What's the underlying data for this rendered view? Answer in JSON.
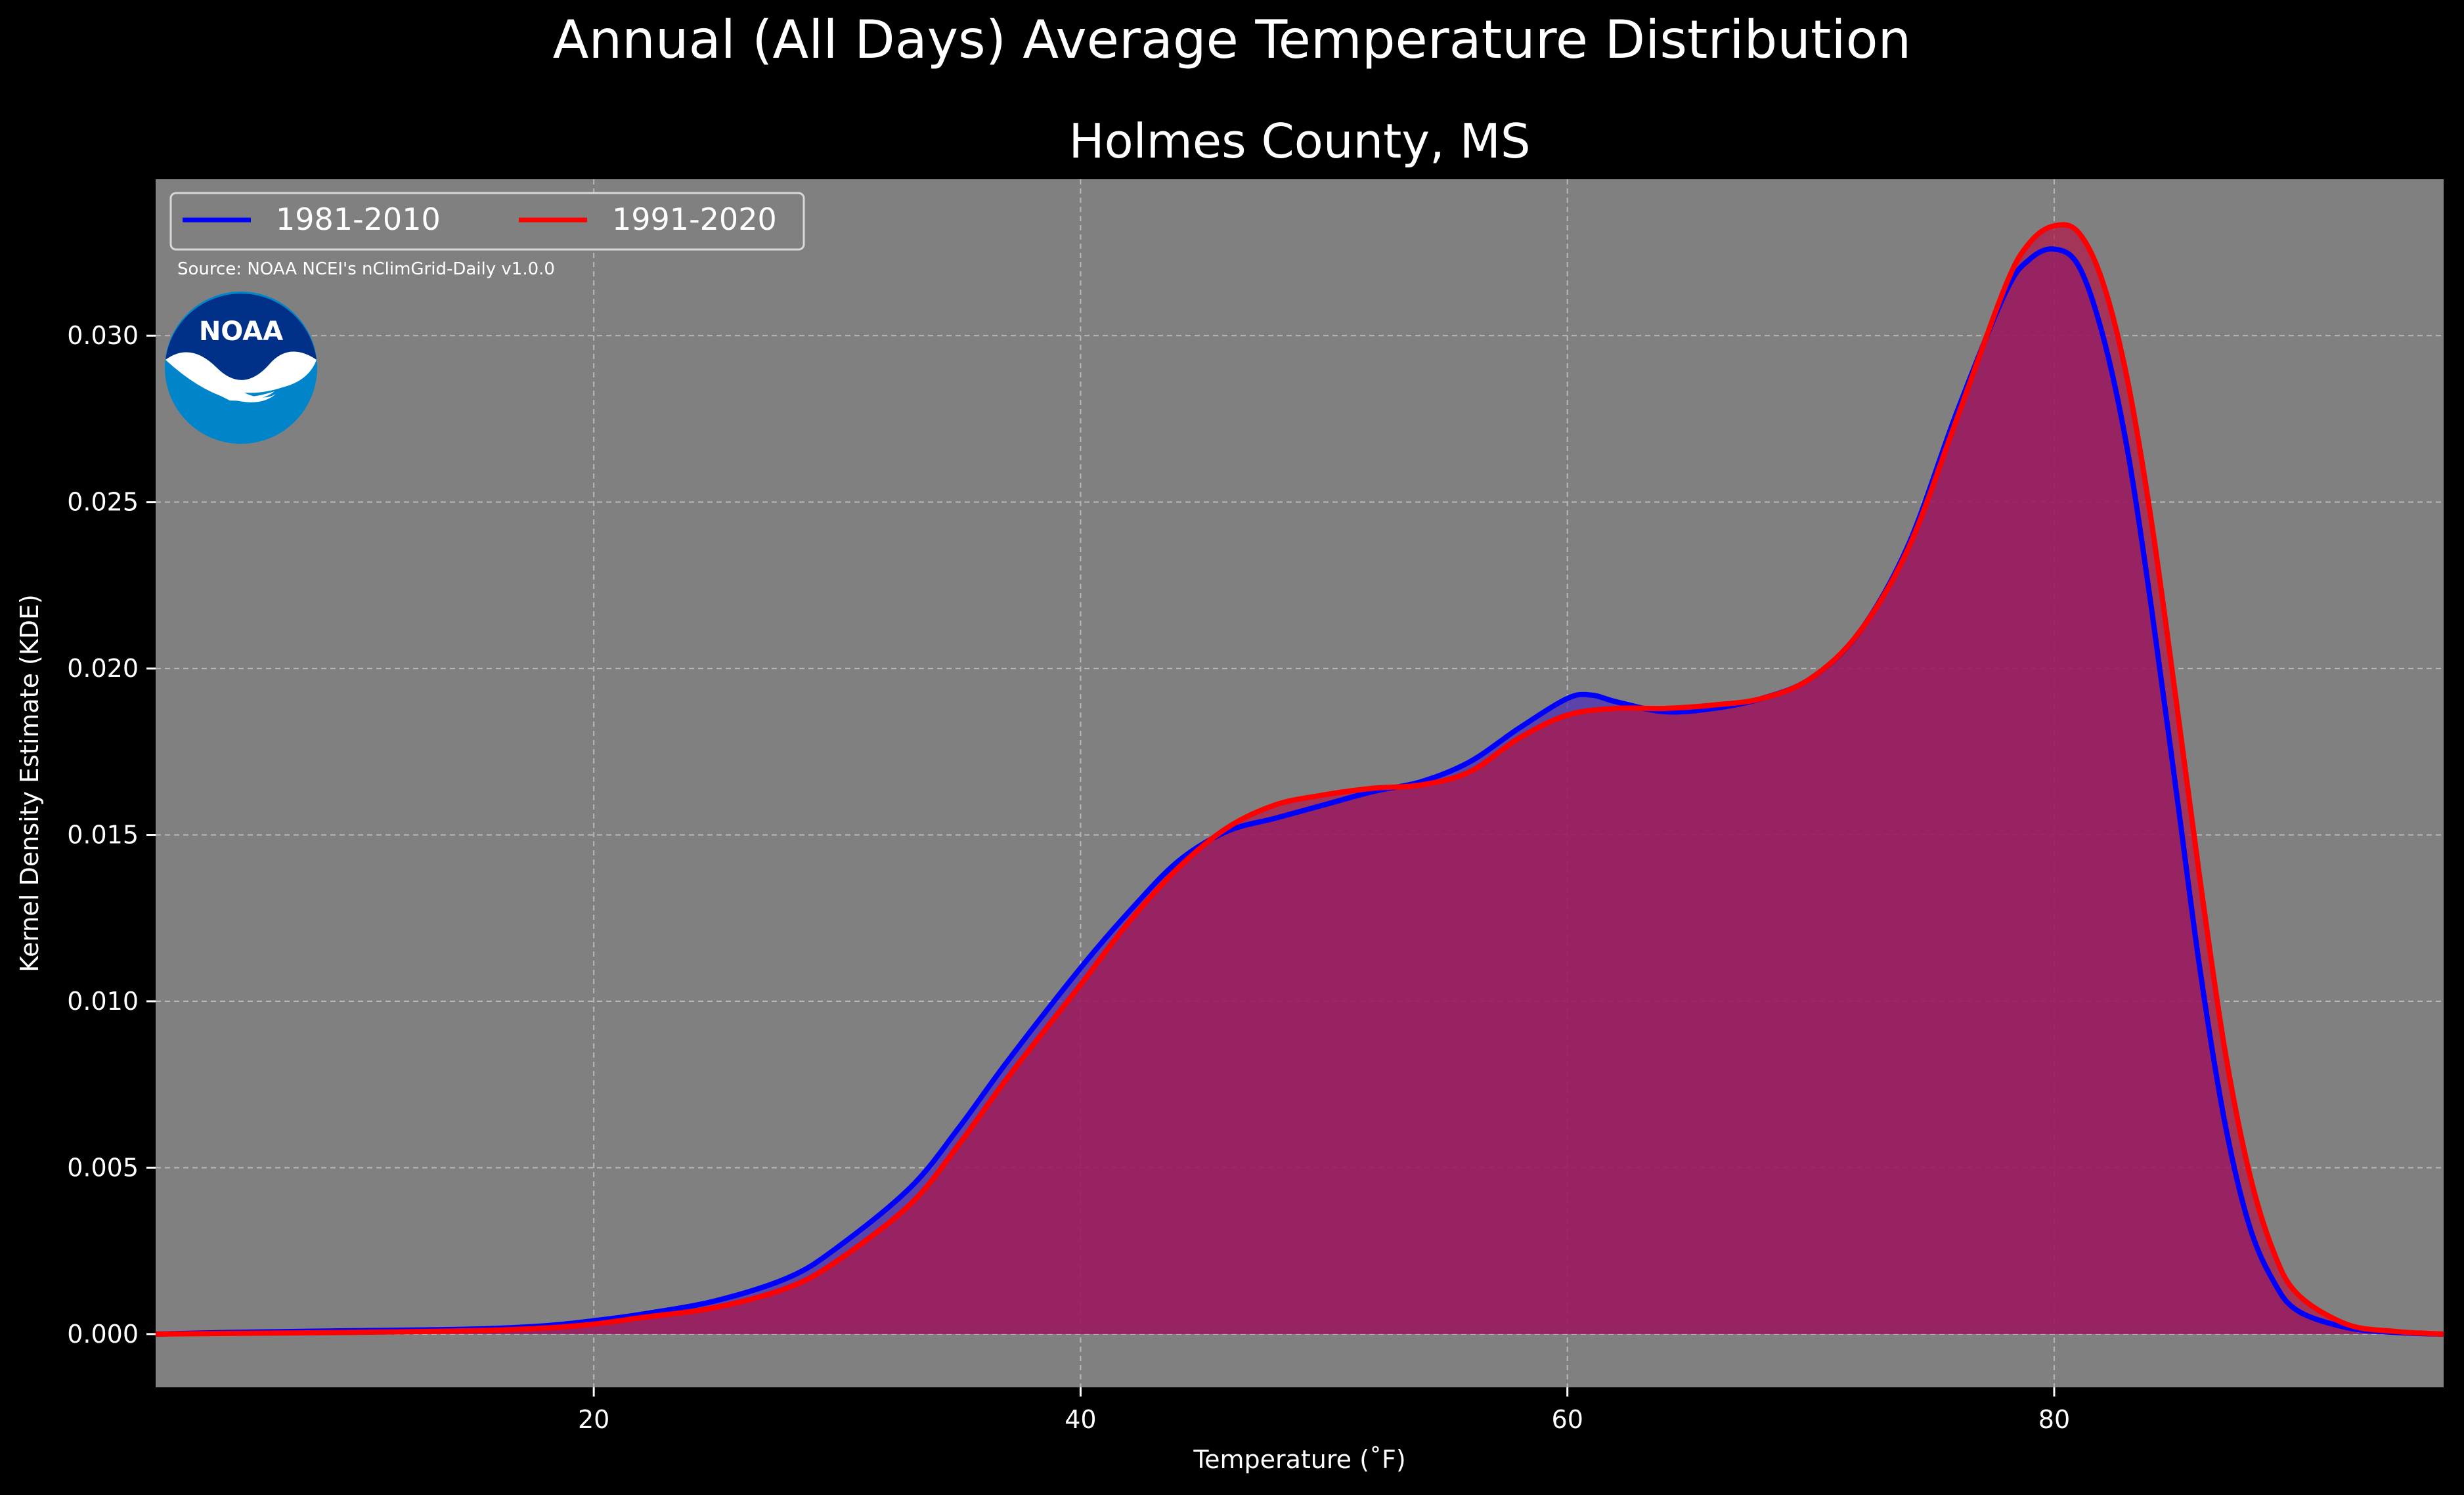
{
  "figure": {
    "suptitle": "Annual (All Days) Average Temperature Distribution",
    "source_note": "Source: NOAA NCEI's nClimGrid-Daily v1.0.0",
    "logo_text": "NOAA",
    "background": "#000000",
    "plot_background": "#808080",
    "text_color": "#ffffff"
  },
  "chart_data": {
    "type": "area",
    "title": "Holmes County, MS",
    "xlabel": "Temperature (˚F)",
    "ylabel": "Kernel Density Estimate (KDE)",
    "xlim": [
      2.0,
      96.0
    ],
    "ylim": [
      -0.0016,
      0.0347
    ],
    "xticks": [
      20,
      40,
      60,
      80
    ],
    "yticks": [
      0.0,
      0.005,
      0.01,
      0.015,
      0.02,
      0.025,
      0.03
    ],
    "ytick_labels": [
      "0.000",
      "0.005",
      "0.010",
      "0.015",
      "0.020",
      "0.025",
      "0.030"
    ],
    "grid": true,
    "legend": {
      "position": "top-left",
      "columns": 2
    },
    "series": [
      {
        "name": "1981-2010",
        "color": "#0000ff",
        "fill": "#4b2bb8",
        "x": [
          2,
          5,
          10,
          15,
          18,
          20,
          22,
          25,
          28,
          30,
          33,
          35,
          37,
          40,
          42,
          44,
          46,
          48,
          50,
          52,
          54,
          56,
          58,
          60,
          61,
          62,
          64,
          66,
          68,
          70,
          72,
          74,
          76,
          78,
          79,
          80,
          81,
          82,
          83,
          84,
          85,
          86,
          87,
          88,
          89,
          90,
          92,
          94,
          96
        ],
        "y": [
          0.0,
          5e-05,
          0.0001,
          0.00015,
          0.00025,
          0.0004,
          0.0006,
          0.001,
          0.0017,
          0.0026,
          0.0044,
          0.0062,
          0.0082,
          0.011,
          0.0127,
          0.0142,
          0.0151,
          0.0155,
          0.0159,
          0.0163,
          0.0166,
          0.0172,
          0.0182,
          0.0191,
          0.0192,
          0.019,
          0.0187,
          0.0188,
          0.0191,
          0.0197,
          0.0211,
          0.0237,
          0.0277,
          0.0313,
          0.0323,
          0.0326,
          0.0321,
          0.03,
          0.0266,
          0.0218,
          0.0164,
          0.0109,
          0.0064,
          0.0033,
          0.0016,
          0.0007,
          0.0002,
          5e-05,
          0.0
        ]
      },
      {
        "name": "1991-2020",
        "color": "#ff0000",
        "fill": "#b01848",
        "x": [
          2,
          5,
          10,
          15,
          18,
          20,
          22,
          25,
          28,
          30,
          33,
          35,
          37,
          40,
          42,
          44,
          46,
          48,
          50,
          52,
          54,
          56,
          58,
          60,
          62,
          64,
          66,
          68,
          70,
          72,
          74,
          76,
          78,
          79,
          80,
          81,
          82,
          83,
          84,
          85,
          86,
          87,
          88,
          89,
          90,
          92,
          94,
          96
        ],
        "y": [
          0.0,
          2e-05,
          5e-05,
          0.0001,
          0.00018,
          0.0003,
          0.0005,
          0.0008,
          0.0014,
          0.0022,
          0.0039,
          0.0057,
          0.0077,
          0.0105,
          0.0124,
          0.014,
          0.0152,
          0.0159,
          0.0162,
          0.0164,
          0.0165,
          0.0169,
          0.0179,
          0.0186,
          0.0188,
          0.0188,
          0.0189,
          0.0191,
          0.0197,
          0.0211,
          0.0236,
          0.0275,
          0.0315,
          0.0328,
          0.0333,
          0.0331,
          0.0316,
          0.0287,
          0.0244,
          0.0191,
          0.0136,
          0.0086,
          0.0049,
          0.0025,
          0.0012,
          0.0003,
          8e-05,
          0.0
        ]
      }
    ]
  }
}
